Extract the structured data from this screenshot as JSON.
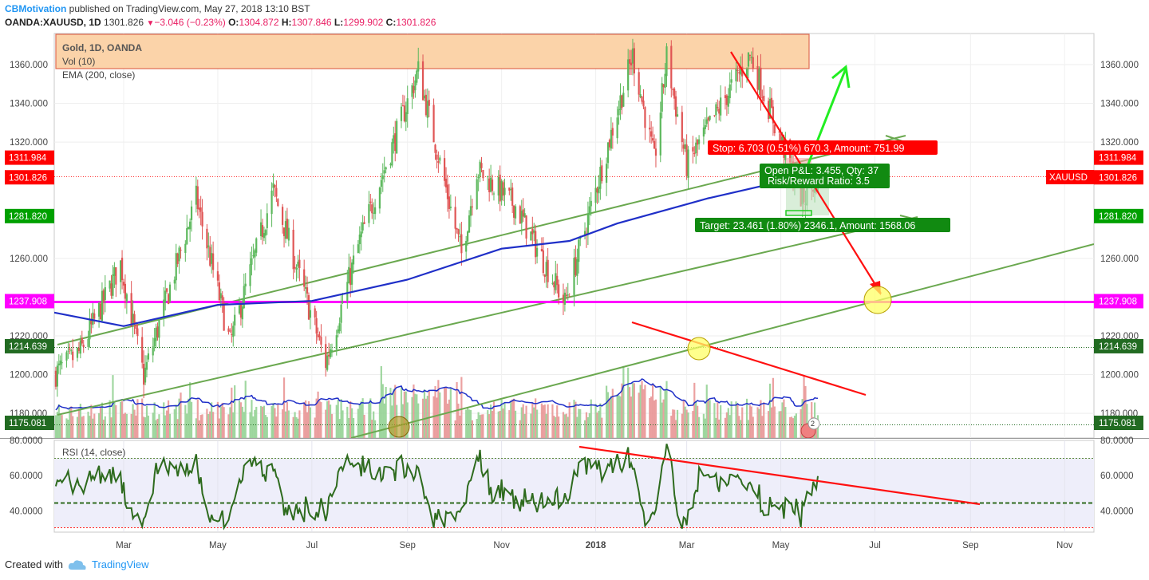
{
  "header": {
    "author": "CBMotivation",
    "published": "published on TradingView.com, May 27, 2018 13:10 BST",
    "symbol": "OANDA:XAUUSD, 1D",
    "last": "1301.826",
    "change": "−3.046 (−0.23%)",
    "open_label": "O:",
    "open": "1304.872",
    "high_label": "H:",
    "high": "1307.846",
    "low_label": "L:",
    "low": "1299.902",
    "close_label": "C:",
    "close": "1301.826"
  },
  "legend": {
    "title": "Gold, 1D, OANDA",
    "vol": "Vol (10)",
    "ema": "EMA (200, close)"
  },
  "rsi_label": "RSI (14, close)",
  "footer": {
    "created": "Created with",
    "brand": "TradingView"
  },
  "price_axis": {
    "ticks": [
      "1360.000",
      "1340.000",
      "1320.000",
      "1260.000",
      "1220.000",
      "1200.000",
      "1180.000"
    ],
    "tags": [
      {
        "text": "1311.984",
        "color": "#ff0000"
      },
      {
        "text": "1301.826",
        "color": "#ff0000"
      },
      {
        "text": "1281.820",
        "color": "#00a000"
      },
      {
        "text": "1237.908",
        "color": "#ff00ff"
      },
      {
        "text": "1214.639",
        "color": "#226b22"
      },
      {
        "text": "1175.081",
        "color": "#226b22"
      }
    ],
    "symbol_tag": "XAUUSD"
  },
  "rsi_axis": {
    "ticks": [
      "80.0000",
      "60.0000",
      "40.0000"
    ]
  },
  "time_axis": {
    "labels": [
      "Mar",
      "May",
      "Jul",
      "Sep",
      "Nov",
      "2018",
      "Mar",
      "May",
      "Jul",
      "Sep",
      "Nov"
    ]
  },
  "position": {
    "stop": "Stop: 6.703 (0.51%) 670.3, Amount: 751.99",
    "open_pl": "Open P&L: 3.455, Qty: 37",
    "rr": "Risk/Reward Ratio: 3.5",
    "target": "Target: 23.461 (1.80%) 2346.1, Amount: 1568.06"
  },
  "colors": {
    "up": "#5cb85c",
    "down": "#e05555",
    "ema": "#1f2fc8",
    "rsi": "#2e6b1e",
    "magenta": "#ff00ff",
    "trend": "#6aa84f",
    "resistance_box": "#fbd3a9"
  },
  "chart_data": {
    "type": "candlestick",
    "title": "Gold, 1D, OANDA",
    "symbol": "OANDA:XAUUSD",
    "timeframe": "1D",
    "x_range": [
      "2017-01-15",
      "2018-11-20"
    ],
    "y_range": [
      1175,
      1370
    ],
    "levels": [
      1311.984,
      1301.826,
      1281.82,
      1237.908,
      1214.639,
      1175.081
    ],
    "anchors": [
      {
        "date": "2017-01-15",
        "close": 1200
      },
      {
        "date": "2017-02-01",
        "close": 1212
      },
      {
        "date": "2017-02-27",
        "close": 1257
      },
      {
        "date": "2017-03-14",
        "close": 1199
      },
      {
        "date": "2017-04-17",
        "close": 1291
      },
      {
        "date": "2017-05-09",
        "close": 1216
      },
      {
        "date": "2017-06-06",
        "close": 1295
      },
      {
        "date": "2017-07-10",
        "close": 1206
      },
      {
        "date": "2017-08-01",
        "close": 1269
      },
      {
        "date": "2017-09-08",
        "close": 1357
      },
      {
        "date": "2017-10-06",
        "close": 1262
      },
      {
        "date": "2017-10-16",
        "close": 1306
      },
      {
        "date": "2017-11-10",
        "close": 1287
      },
      {
        "date": "2017-12-12",
        "close": 1237
      },
      {
        "date": "2018-01-25",
        "close": 1365
      },
      {
        "date": "2018-02-08",
        "close": 1310
      },
      {
        "date": "2018-02-16",
        "close": 1364
      },
      {
        "date": "2018-03-01",
        "close": 1308
      },
      {
        "date": "2018-04-11",
        "close": 1365
      },
      {
        "date": "2018-05-15",
        "close": 1290
      },
      {
        "date": "2018-05-25",
        "close": 1301.826
      }
    ],
    "ema200": [
      {
        "date": "2017-01-15",
        "value": 1232
      },
      {
        "date": "2017-03-01",
        "value": 1225
      },
      {
        "date": "2017-05-01",
        "value": 1236
      },
      {
        "date": "2017-07-01",
        "value": 1238
      },
      {
        "date": "2017-09-01",
        "value": 1249
      },
      {
        "date": "2017-11-01",
        "value": 1265
      },
      {
        "date": "2017-12-15",
        "value": 1269
      },
      {
        "date": "2018-01-15",
        "value": 1278
      },
      {
        "date": "2018-03-15",
        "value": 1291
      },
      {
        "date": "2018-05-25",
        "value": 1304
      }
    ],
    "rsi": {
      "name": "RSI (14, close)",
      "y_range": [
        28,
        80
      ],
      "levels": [
        70,
        44,
        30
      ]
    }
  }
}
